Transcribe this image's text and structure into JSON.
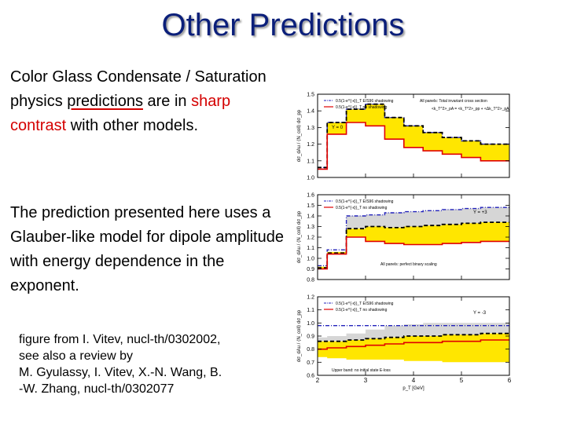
{
  "slide": {
    "title": "Other Predictions",
    "para1": {
      "a": "Color Glass Condensate / Saturation physics ",
      "b": "predictions",
      "c": " are in ",
      "d": "sharp contrast",
      "e": " with other models."
    },
    "para2": "The prediction presented here uses a Glauber-like model for dipole amplitude with energy dependence in the exponent.",
    "citation": {
      "line1": "figure from I. Vitev, nucl-th/0302002,",
      "line2": "see also a review by",
      "line3": "M. Gyulassy, I. Vitev, X.-N. Wang, B.",
      "line4": "-W. Zhang, nucl-th/0302077"
    }
  },
  "figure": {
    "xlabel": "p_T [GeV]",
    "xticks": [
      "2",
      "3",
      "4",
      "5",
      "6"
    ],
    "panel_y_labels": [
      "dσ_dAu / ⟨N_coll⟩ dσ_pp",
      "dσ_dAu / ⟨N_coll⟩ dσ_pp",
      "dσ_dAu / ⟨N_coll⟩ dσ_pp"
    ],
    "colors": {
      "band": "#ffe600",
      "grey": "#d6d6d6",
      "red": "#e00000",
      "blue": "#2222bb",
      "black": "#000000"
    }
  },
  "chart_data": [
    {
      "type": "step",
      "panel": "Y = 0",
      "xlim": [
        2,
        6
      ],
      "ylim": [
        1.0,
        1.5
      ],
      "yticks": [
        "1.0",
        "1.1",
        "1.2",
        "1.3",
        "1.4",
        "1.5"
      ],
      "x_edges": [
        2.0,
        2.2,
        2.6,
        3.0,
        3.4,
        3.8,
        4.2,
        4.6,
        5.0,
        5.4,
        6.0
      ],
      "legend": [
        "0.5(1-e^{-x})_T E/S96 shadowing",
        "0.5(1-e^{-x})_T no shadowing"
      ],
      "label_y": "Y = 0",
      "annotation1": "All panels:  Total invariant cross section",
      "annotation2": "<k_T^2>_pA = <k_T^2>_pp + <Δk_T^2>_pA",
      "series": [
        {
          "name": "band_low",
          "values": [
            1.05,
            1.26,
            1.33,
            1.31,
            1.23,
            1.18,
            1.16,
            1.14,
            1.12,
            1.1
          ]
        },
        {
          "name": "band_high",
          "values": [
            1.05,
            1.33,
            1.41,
            1.44,
            1.36,
            1.31,
            1.27,
            1.24,
            1.22,
            1.2
          ]
        },
        {
          "name": "red_solid",
          "values": [
            1.05,
            1.26,
            1.33,
            1.31,
            1.23,
            1.18,
            1.16,
            1.14,
            1.12,
            1.1
          ]
        },
        {
          "name": "black_dashed",
          "values": [
            1.06,
            1.33,
            1.41,
            1.44,
            1.36,
            1.31,
            1.27,
            1.24,
            1.22,
            1.2
          ]
        },
        {
          "name": "blue_dashdot",
          "values": [
            1.06,
            1.33,
            1.41,
            1.44,
            1.36,
            1.31,
            1.27,
            1.24,
            1.22,
            1.2
          ]
        }
      ]
    },
    {
      "type": "step",
      "panel": "Y = +3",
      "xlim": [
        2,
        6
      ],
      "ylim": [
        0.8,
        1.6
      ],
      "yticks": [
        "0.8",
        "0.9",
        "1.0",
        "1.1",
        "1.2",
        "1.3",
        "1.4",
        "1.5",
        "1.6"
      ],
      "x_edges": [
        2.0,
        2.2,
        2.6,
        3.0,
        3.4,
        3.8,
        4.2,
        4.6,
        5.0,
        5.4,
        6.0
      ],
      "legend": [
        "0.5(1-e^{-x})_T E/S96 shadowing",
        "0.5(1-e^{-x})_T no shadowing"
      ],
      "label_y": "Y = +3",
      "annotation1": "All panels:  perfect binary scaling",
      "series": [
        {
          "name": "grey_low",
          "values": [
            0.92,
            1.06,
            1.28,
            1.3,
            1.29,
            1.3,
            1.31,
            1.32,
            1.33,
            1.34
          ]
        },
        {
          "name": "grey_high",
          "values": [
            0.92,
            1.06,
            1.4,
            1.41,
            1.43,
            1.44,
            1.45,
            1.46,
            1.47,
            1.48
          ]
        },
        {
          "name": "band_low",
          "values": [
            0.9,
            1.04,
            1.2,
            1.16,
            1.14,
            1.13,
            1.13,
            1.14,
            1.15,
            1.16
          ]
        },
        {
          "name": "band_high",
          "values": [
            0.92,
            1.06,
            1.28,
            1.3,
            1.29,
            1.3,
            1.31,
            1.32,
            1.33,
            1.34
          ]
        },
        {
          "name": "red_solid",
          "values": [
            0.9,
            1.04,
            1.2,
            1.16,
            1.14,
            1.13,
            1.13,
            1.14,
            1.15,
            1.16
          ]
        },
        {
          "name": "black_dashed",
          "values": [
            0.91,
            1.05,
            1.28,
            1.3,
            1.29,
            1.3,
            1.31,
            1.32,
            1.33,
            1.34
          ]
        },
        {
          "name": "blue_dashdot",
          "values": [
            0.93,
            1.08,
            1.4,
            1.41,
            1.43,
            1.44,
            1.45,
            1.46,
            1.47,
            1.48
          ]
        }
      ]
    },
    {
      "type": "step",
      "panel": "Y = -3",
      "xlim": [
        2,
        6
      ],
      "ylim": [
        0.6,
        1.2
      ],
      "yticks": [
        "0.6",
        "0.7",
        "0.8",
        "0.9",
        "1.0",
        "1.1",
        "1.2"
      ],
      "x_edges": [
        2.0,
        2.2,
        2.6,
        3.0,
        3.4,
        3.8,
        4.2,
        4.6,
        5.0,
        5.4,
        6.0
      ],
      "legend": [
        "0.5(1-e^{-x})_T E/S96 shadowing",
        "0.5(1-e^{-x})_T no shadowing"
      ],
      "label_y": "Y = -3",
      "annotation1": "Upper band: no initial state E-loss",
      "series": [
        {
          "name": "grey_low",
          "values": [
            0.86,
            0.86,
            0.87,
            0.88,
            0.89,
            0.9,
            0.9,
            0.91,
            0.91,
            0.92
          ]
        },
        {
          "name": "grey_high",
          "values": [
            0.89,
            0.9,
            0.92,
            0.95,
            0.98,
            0.99,
            1.0,
            1.0,
            1.0,
            1.0
          ]
        },
        {
          "name": "band_low",
          "values": [
            0.74,
            0.73,
            0.72,
            0.72,
            0.72,
            0.71,
            0.71,
            0.7,
            0.7,
            0.7
          ]
        },
        {
          "name": "band_high",
          "values": [
            0.86,
            0.86,
            0.87,
            0.88,
            0.89,
            0.9,
            0.9,
            0.91,
            0.91,
            0.92
          ]
        },
        {
          "name": "red_solid",
          "values": [
            0.8,
            0.81,
            0.82,
            0.83,
            0.84,
            0.85,
            0.85,
            0.86,
            0.86,
            0.87
          ]
        },
        {
          "name": "black_dashed",
          "values": [
            0.86,
            0.86,
            0.87,
            0.88,
            0.89,
            0.9,
            0.9,
            0.91,
            0.91,
            0.92
          ]
        },
        {
          "name": "blue_dashdot",
          "values": [
            0.98,
            0.98,
            0.98,
            0.98,
            0.98,
            0.98,
            0.98,
            0.98,
            0.98,
            0.98
          ]
        }
      ]
    }
  ]
}
